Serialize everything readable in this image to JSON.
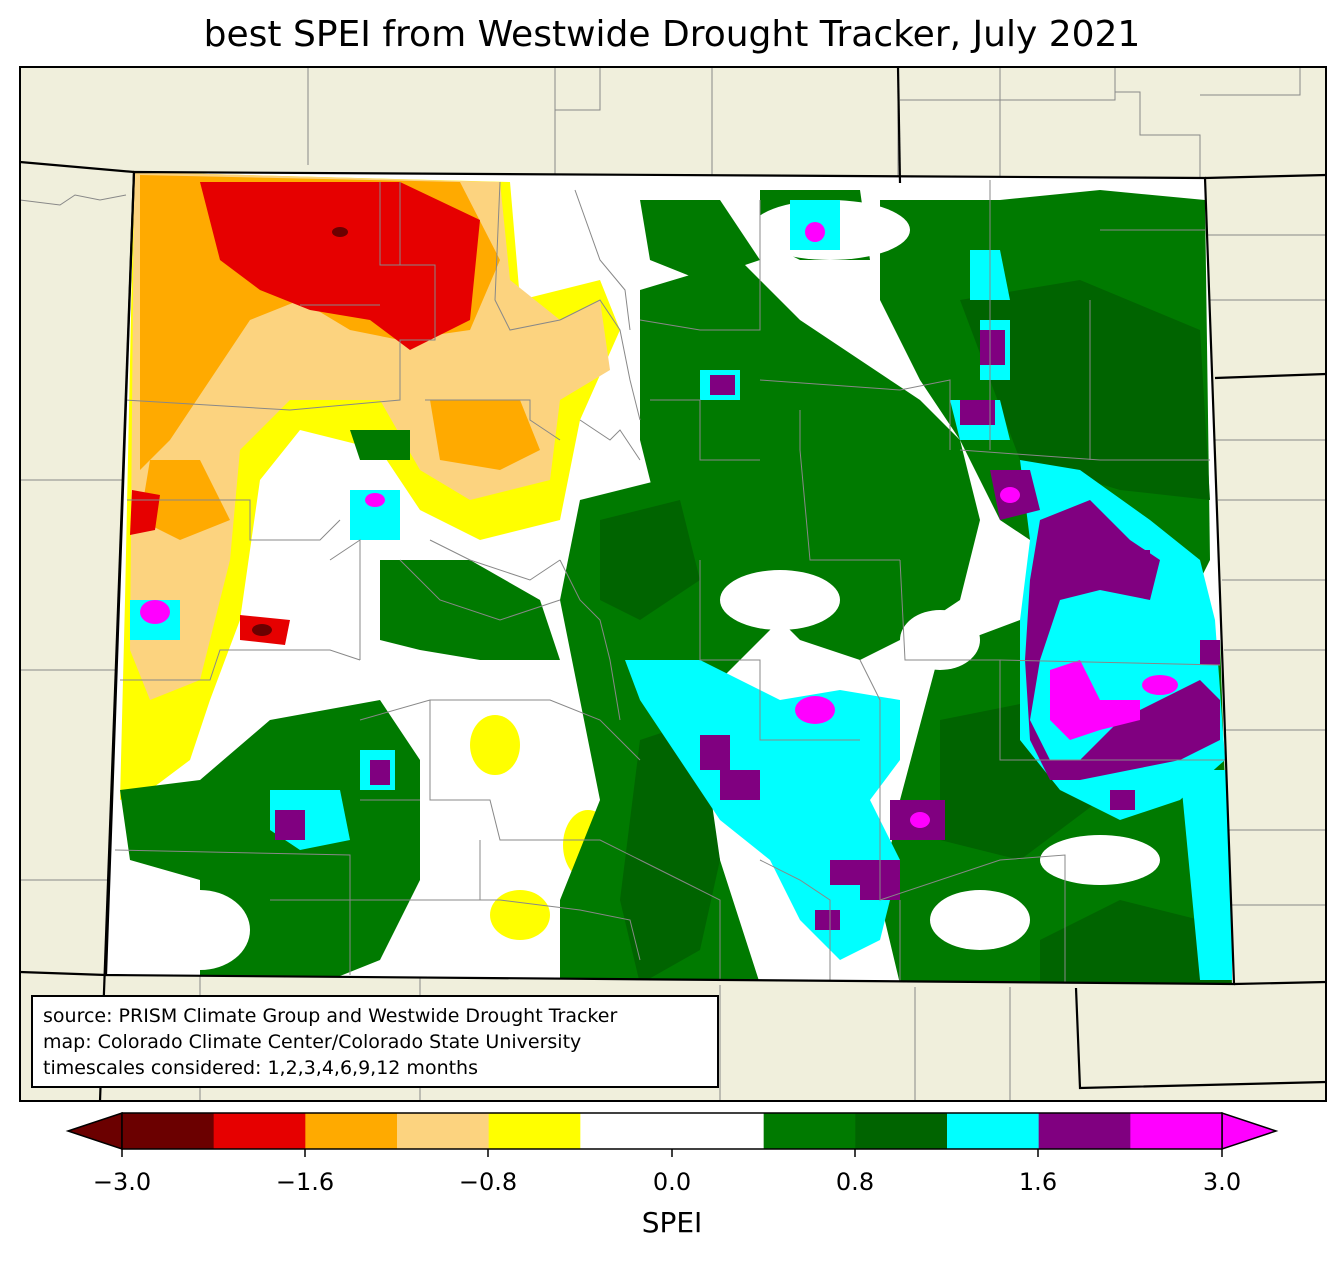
{
  "title": "best SPEI from Westwide Drought Tracker, July 2021",
  "source_lines": [
    "source: PRISM Climate Group and Westwide Drought Tracker",
    "map: Colorado Climate Center/Colorado State University",
    "timescales considered: 1,2,3,4,6,9,12 months"
  ],
  "colorbar": {
    "label": "SPEI",
    "ticks": [
      "−3.0",
      "−1.6",
      "−0.8",
      "0.0",
      "0.8",
      "1.6",
      "3.0"
    ],
    "colors": [
      "#6b0000",
      "#e60000",
      "#ffaa00",
      "#fcd37f",
      "#ffff00",
      "#ffffff",
      "#ffffff",
      "#007a00",
      "#006400",
      "#00ffff",
      "#800080",
      "#ff00ff"
    ],
    "extend": "both"
  },
  "colors": {
    "land_background": "#f0efdc",
    "state_border": "#000000",
    "county_border": "#888888"
  }
}
